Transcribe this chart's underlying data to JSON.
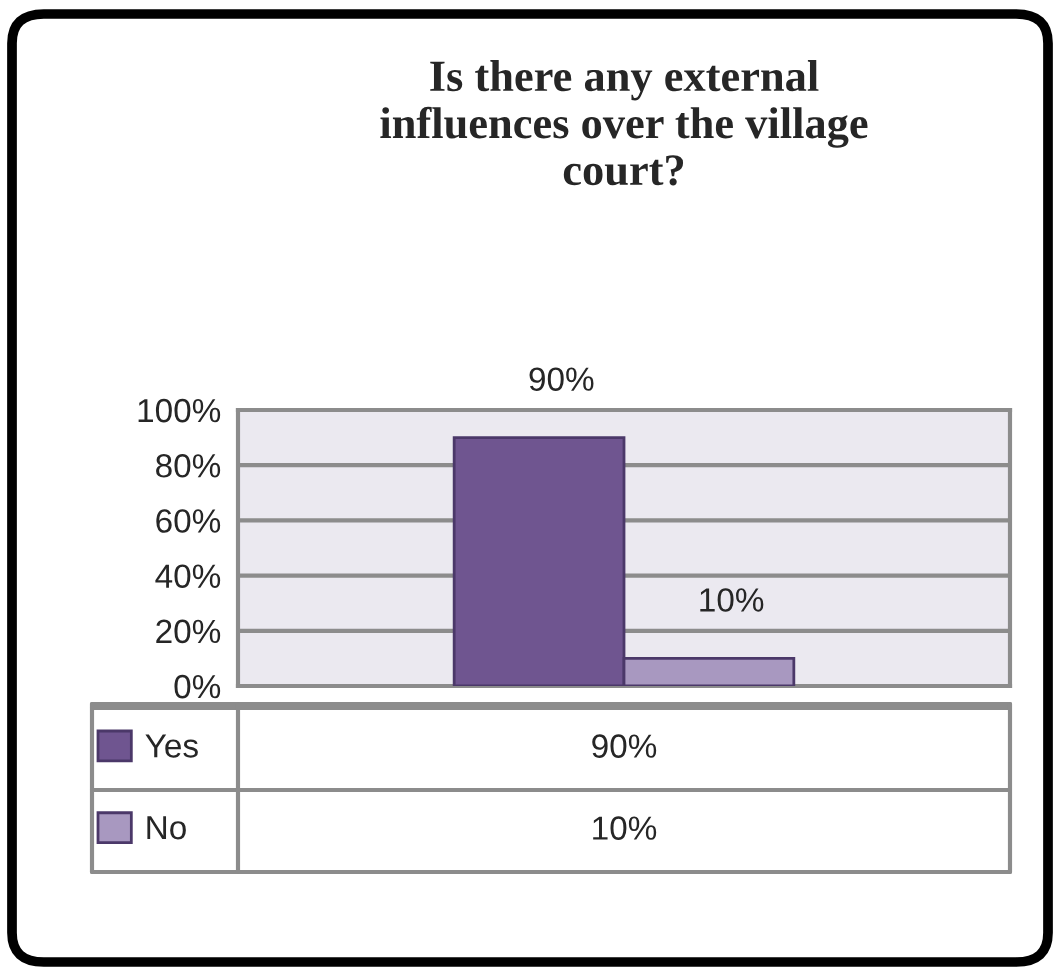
{
  "chart_data": {
    "type": "bar",
    "title": "Is there any external\ninfluences over the village\ncourt?",
    "categories": [
      null
    ],
    "series": [
      {
        "name": "Yes",
        "color": "#6f5590",
        "values": [
          90
        ],
        "value_labels": [
          "90%"
        ]
      },
      {
        "name": "No",
        "color": "#a898c0",
        "values": [
          10
        ],
        "value_labels": [
          "10%"
        ]
      }
    ],
    "ylim": [
      0,
      100
    ],
    "yticks": [
      {
        "value": 0,
        "label": "0%"
      },
      {
        "value": 20,
        "label": "20%"
      },
      {
        "value": 40,
        "label": "40%"
      },
      {
        "value": 60,
        "label": "60%"
      },
      {
        "value": 80,
        "label": "80%"
      },
      {
        "value": 100,
        "label": "100%"
      }
    ],
    "grid": "y",
    "legend": "bottom left"
  }
}
